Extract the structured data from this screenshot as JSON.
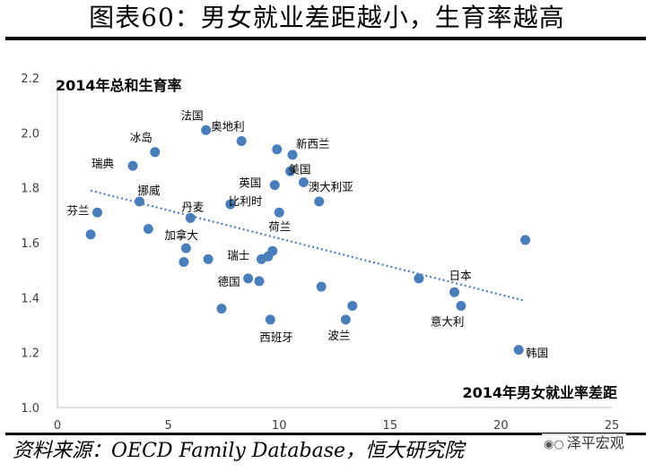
{
  "figure": {
    "title": "图表60：男女就业差距越小，生育率越高",
    "source": "资料来源：OECD Family Database，恒大研究院",
    "watermark": "泽平宏观",
    "watermark_icon": "wechat-icon"
  },
  "chart_data": {
    "type": "scatter",
    "title": "",
    "xlabel": "2014年男女就业率差距",
    "ylabel": "2014年总和生育率",
    "xlim": [
      0,
      25
    ],
    "ylim": [
      1.0,
      2.2
    ],
    "x_ticks": [
      "0",
      "5",
      "10",
      "15",
      "20",
      "25"
    ],
    "y_ticks": [
      "1.0",
      "1.2",
      "1.4",
      "1.6",
      "1.8",
      "2.0",
      "2.2"
    ],
    "grid": false,
    "legend": "none",
    "point_color": "#4a7ebb",
    "trendline": {
      "type": "linear",
      "x": [
        1.5,
        21
      ],
      "y": [
        1.79,
        1.39
      ],
      "color": "#4a7ebb"
    },
    "points": [
      {
        "x": 1.5,
        "y": 1.63,
        "label": ""
      },
      {
        "x": 1.8,
        "y": 1.71,
        "label": "芬兰"
      },
      {
        "x": 3.4,
        "y": 1.88,
        "label": "瑞典"
      },
      {
        "x": 3.7,
        "y": 1.75,
        "label": "挪威"
      },
      {
        "x": 4.1,
        "y": 1.65,
        "label": ""
      },
      {
        "x": 4.4,
        "y": 1.93,
        "label": "冰岛"
      },
      {
        "x": 5.7,
        "y": 1.53,
        "label": ""
      },
      {
        "x": 5.8,
        "y": 1.58,
        "label": "加拿大"
      },
      {
        "x": 6.0,
        "y": 1.69,
        "label": "丹麦"
      },
      {
        "x": 6.7,
        "y": 2.01,
        "label": "法国"
      },
      {
        "x": 6.8,
        "y": 1.54,
        "label": ""
      },
      {
        "x": 7.4,
        "y": 1.36,
        "label": ""
      },
      {
        "x": 7.8,
        "y": 1.74,
        "label": "比利时"
      },
      {
        "x": 8.3,
        "y": 1.97,
        "label": "奥地利"
      },
      {
        "x": 8.6,
        "y": 1.47,
        "label": "德国"
      },
      {
        "x": 9.1,
        "y": 1.46,
        "label": ""
      },
      {
        "x": 9.2,
        "y": 1.54,
        "label": "瑞士"
      },
      {
        "x": 9.5,
        "y": 1.55,
        "label": ""
      },
      {
        "x": 9.6,
        "y": 1.32,
        "label": "西班牙"
      },
      {
        "x": 9.7,
        "y": 1.57,
        "label": ""
      },
      {
        "x": 9.8,
        "y": 1.81,
        "label": "英国"
      },
      {
        "x": 9.9,
        "y": 1.94,
        "label": ""
      },
      {
        "x": 10.0,
        "y": 1.71,
        "label": "荷兰"
      },
      {
        "x": 10.5,
        "y": 1.86,
        "label": "美国"
      },
      {
        "x": 10.6,
        "y": 1.92,
        "label": "新西兰"
      },
      {
        "x": 11.1,
        "y": 1.82,
        "label": ""
      },
      {
        "x": 11.8,
        "y": 1.75,
        "label": "澳大利亚"
      },
      {
        "x": 11.9,
        "y": 1.44,
        "label": ""
      },
      {
        "x": 13.0,
        "y": 1.32,
        "label": "波兰"
      },
      {
        "x": 13.3,
        "y": 1.37,
        "label": ""
      },
      {
        "x": 16.3,
        "y": 1.47,
        "label": ""
      },
      {
        "x": 17.9,
        "y": 1.42,
        "label": "日本"
      },
      {
        "x": 18.2,
        "y": 1.37,
        "label": "意大利"
      },
      {
        "x": 20.8,
        "y": 1.21,
        "label": "韩国"
      },
      {
        "x": 21.1,
        "y": 1.61,
        "label": ""
      }
    ]
  }
}
